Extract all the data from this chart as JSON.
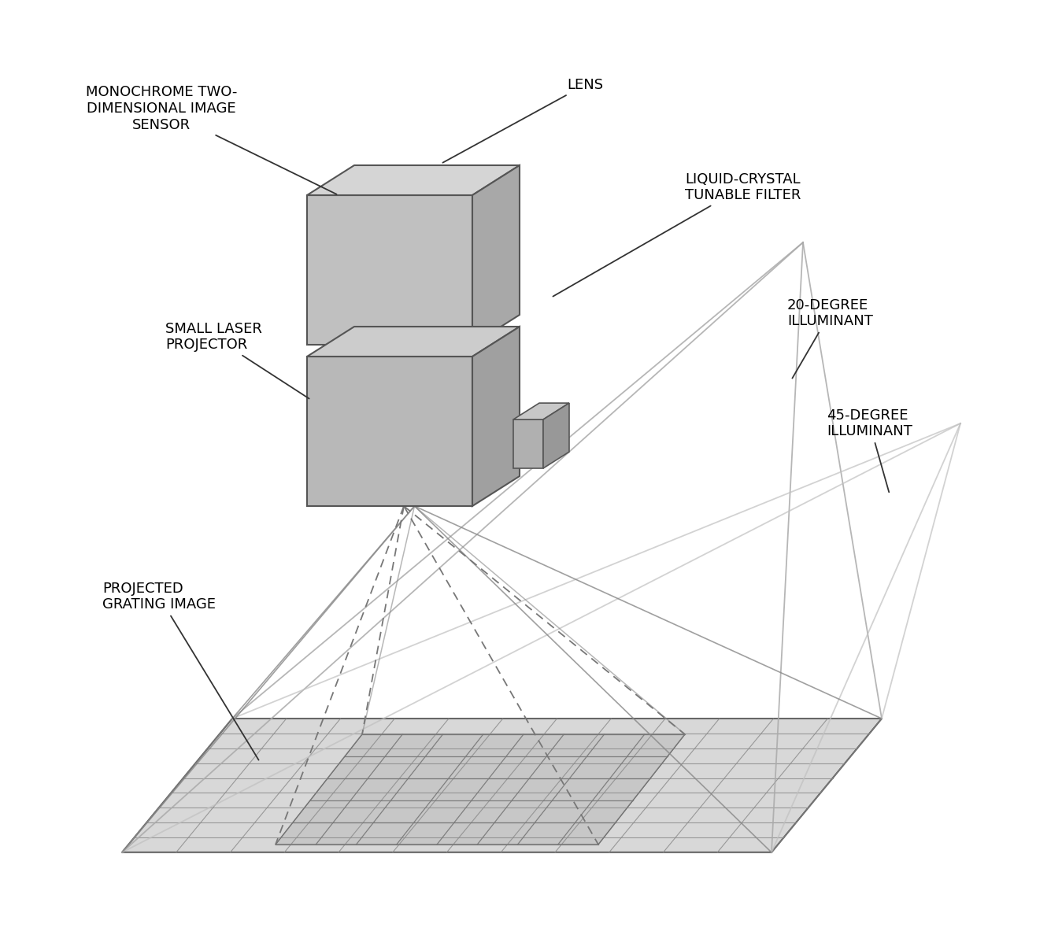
{
  "bg_color": "#ffffff",
  "line_color": "#555555",
  "fill_top1": "#d5d5d5",
  "fill_front1": "#c0c0c0",
  "fill_right1": "#a8a8a8",
  "fill_top2": "#cccccc",
  "fill_front2": "#b8b8b8",
  "fill_right2": "#a0a0a0",
  "fill_top3": "#c8c8c8",
  "fill_front3": "#b0b0b0",
  "fill_right3": "#989898",
  "surf_fill": "#d8d8d8",
  "proj_fill": "#c0c0c0",
  "grid_line": "#888888",
  "illum20_color": "#aaaaaa",
  "illum45_color": "#c0c0c0",
  "dashed_color": "#777777",
  "solid_line_color": "#888888",
  "labels": {
    "monochrome": "MONOCHROME TWO-\nDIMENSIONAL IMAGE\nSENSOR",
    "lens": "LENS",
    "liquid_crystal": "LIQUID-CRYSTAL\nTUNABLE FILTER",
    "small_laser": "SMALL LASER\nPROJECTOR",
    "degree20": "20-DEGREE\nILLUMINANT",
    "degree45": "45-DEGREE\nILLUMINANT",
    "projected": "PROJECTED\nGRATING IMAGE"
  },
  "font_size": 13,
  "fig_width": 13.49,
  "fig_height": 11.88
}
